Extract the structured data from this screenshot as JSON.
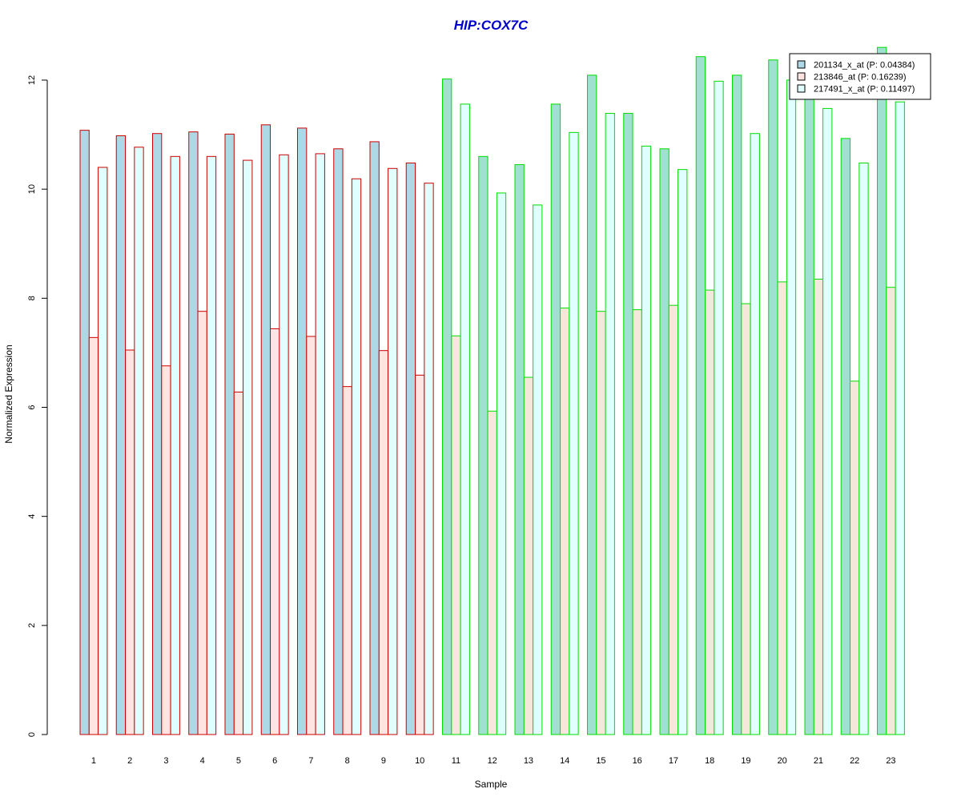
{
  "chart_data": {
    "type": "bar",
    "title": "HIP:COX7C",
    "xlabel": "Sample",
    "ylabel": "Normalized Expression",
    "ylim": [
      0,
      12
    ],
    "yticks": [
      0,
      2,
      4,
      6,
      8,
      10,
      12
    ],
    "grid": false,
    "legend_position": "top-right",
    "categories": [
      "1",
      "2",
      "3",
      "4",
      "5",
      "6",
      "7",
      "8",
      "9",
      "10",
      "11",
      "12",
      "13",
      "14",
      "15",
      "16",
      "17",
      "18",
      "19",
      "20",
      "21",
      "22",
      "23"
    ],
    "group_border_colors": [
      "#CC0000",
      "#CC0000",
      "#CC0000",
      "#CC0000",
      "#CC0000",
      "#CC0000",
      "#CC0000",
      "#CC0000",
      "#CC0000",
      "#CC0000",
      "#00DD00",
      "#00DD00",
      "#00DD00",
      "#00DD00",
      "#00DD00",
      "#00DD00",
      "#00DD00",
      "#00DD00",
      "#00DD00",
      "#00DD00",
      "#00DD00",
      "#00DD00",
      "#00DD00"
    ],
    "series": [
      {
        "name": "201134_x_at (P: 0.04384)",
        "fill_color": "#ADD8E6",
        "fill_color_alt": "#A0E0D0",
        "values": [
          11.08,
          10.98,
          11.02,
          11.05,
          11.01,
          11.18,
          11.12,
          10.74,
          10.87,
          10.48,
          12.02,
          10.6,
          10.45,
          11.56,
          12.09,
          11.39,
          10.74,
          12.43,
          12.09,
          12.37,
          11.7,
          10.93,
          12.6
        ]
      },
      {
        "name": "213846_at (P: 0.16239)",
        "fill_color": "#FFE4E1",
        "fill_color_alt": "#F5E8DA",
        "values": [
          7.28,
          7.05,
          6.76,
          7.76,
          6.28,
          7.44,
          7.3,
          6.38,
          7.04,
          6.59,
          7.31,
          5.93,
          6.55,
          7.82,
          7.76,
          7.79,
          7.87,
          8.15,
          7.9,
          8.3,
          8.35,
          6.48,
          8.2
        ]
      },
      {
        "name": "217491_x_at (P: 0.11497)",
        "fill_color": "#E0FFFF",
        "fill_color_alt": "#E0FFFF",
        "values": [
          10.4,
          10.77,
          10.6,
          10.6,
          10.53,
          10.63,
          10.65,
          10.19,
          10.38,
          10.11,
          11.56,
          9.93,
          9.71,
          11.04,
          11.39,
          10.79,
          10.36,
          11.98,
          11.02,
          12.0,
          11.48,
          10.48,
          11.6
        ]
      }
    ]
  }
}
